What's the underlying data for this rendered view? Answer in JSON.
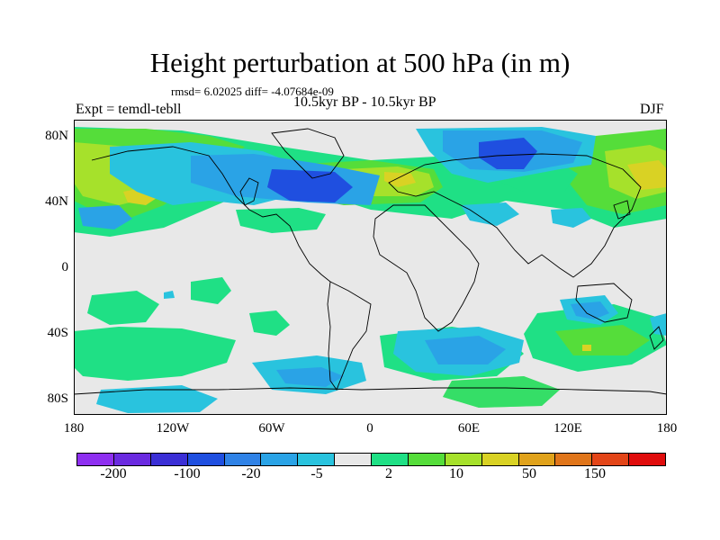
{
  "header": {
    "title": "Height perturbation at 500 hPa (in m)",
    "stats": "rmsd= 6.02025 diff= -4.07684e-09",
    "period": "10.5kyr BP - 10.5kyr BP",
    "experiment": "Expt = temdl-tebll",
    "season": "DJF"
  },
  "map": {
    "projection": "cylindrical equidistant",
    "lat_ticks": [
      "80N",
      "40N",
      "0",
      "40S",
      "80S"
    ],
    "lon_ticks": [
      "180",
      "120W",
      "60W",
      "0",
      "60E",
      "120E",
      "180"
    ]
  },
  "colorbar": {
    "colors": [
      "#8e2ff0",
      "#6a2ae0",
      "#3b2fd6",
      "#1f4fe0",
      "#2f82e6",
      "#2aa3e6",
      "#29c3de",
      "#e8e8e8",
      "#1fe085",
      "#55dd3a",
      "#a6e12b",
      "#d9d224",
      "#e0a21b",
      "#e0751a",
      "#e34518",
      "#e00d0d"
    ],
    "labels": [
      "-200",
      "-100",
      "-20",
      "-5",
      "2",
      "10",
      "50",
      "150"
    ]
  },
  "palette": {
    "land_bg": "#e8e8e8",
    "neg_light": "#29c3de",
    "neg_mid": "#2aa3e6",
    "neg_dark": "#1f4fe0",
    "pos_light": "#1fe085",
    "pos_mid": "#55dd3a",
    "pos_yel": "#a6e12b",
    "pos_gold": "#d9d224"
  }
}
